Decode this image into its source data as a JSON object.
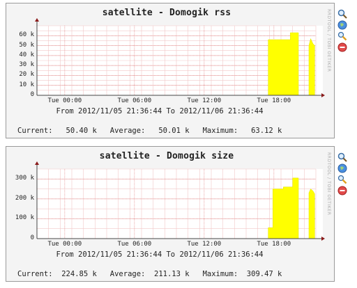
{
  "graphs": [
    {
      "title": "satellite - Domogik rss",
      "range_text": "From 2012/11/05 21:36:44 To 2012/11/06 21:36:44",
      "current_label": "Current:",
      "current_value": "50.40 k",
      "average_label": "Average:",
      "average_value": "50.01 k",
      "maximum_label": "Maximum:",
      "maximum_value": "63.12 k",
      "side_text": "RRDTOOL / TOBI OETIKER"
    },
    {
      "title": "satellite - Domogik size",
      "range_text": "From 2012/11/05 21:36:44 To 2012/11/06 21:36:44",
      "current_label": "Current:",
      "current_value": "224.85 k",
      "average_label": "Average:",
      "average_value": "211.13 k",
      "maximum_label": "Maximum:",
      "maximum_value": "309.47 k",
      "side_text": "RRDTOOL / TOBI OETIKER"
    }
  ],
  "icons": [
    "zoom-icon",
    "globe-icon",
    "magnifier-edit-icon",
    "remove-icon"
  ],
  "chart_data": [
    {
      "type": "area",
      "title": "satellite - Domogik rss",
      "xlabel": "",
      "ylabel": "",
      "x_ticks": [
        "Tue 00:00",
        "Tue 06:00",
        "Tue 12:00",
        "Tue 18:00"
      ],
      "x_hours_from_start": [
        2.39,
        8.39,
        14.39,
        20.39
      ],
      "y_ticks": [
        "0",
        "10 k",
        "20 k",
        "30 k",
        "40 k",
        "50 k",
        "60 k"
      ],
      "y_tick_values": [
        0,
        10000,
        20000,
        30000,
        40000,
        50000,
        60000
      ],
      "ylim": [
        0,
        70000
      ],
      "xlim_hours": [
        0,
        24
      ],
      "color": "#ffff00",
      "segments": [
        {
          "x": [
            19.9,
            20.6,
            20.6,
            21.8,
            21.8,
            22.5
          ],
          "y": [
            56000,
            56000,
            56000,
            56000,
            63000,
            63000
          ]
        },
        {
          "x": [
            23.4,
            23.55,
            23.75,
            23.9
          ],
          "y": [
            50000,
            57000,
            52000,
            50000
          ]
        }
      ],
      "grid": true
    },
    {
      "type": "area",
      "title": "satellite - Domogik size",
      "xlabel": "",
      "ylabel": "",
      "x_ticks": [
        "Tue 00:00",
        "Tue 06:00",
        "Tue 12:00",
        "Tue 18:00"
      ],
      "x_hours_from_start": [
        2.39,
        8.39,
        14.39,
        20.39
      ],
      "y_ticks": [
        "0",
        "100 k",
        "200 k",
        "300 k"
      ],
      "y_tick_values": [
        0,
        100000,
        200000,
        300000
      ],
      "ylim": [
        0,
        350000
      ],
      "xlim_hours": [
        0,
        24
      ],
      "color": "#ffff00",
      "segments": [
        {
          "x": [
            19.9,
            20.3,
            20.3,
            21.2,
            21.2,
            22.0,
            22.0,
            22.5
          ],
          "y": [
            55000,
            55000,
            250000,
            250000,
            260000,
            260000,
            305000,
            305000
          ]
        },
        {
          "x": [
            23.4,
            23.55,
            23.75,
            23.9
          ],
          "y": [
            230000,
            250000,
            240000,
            225000
          ]
        }
      ],
      "grid": true
    }
  ]
}
